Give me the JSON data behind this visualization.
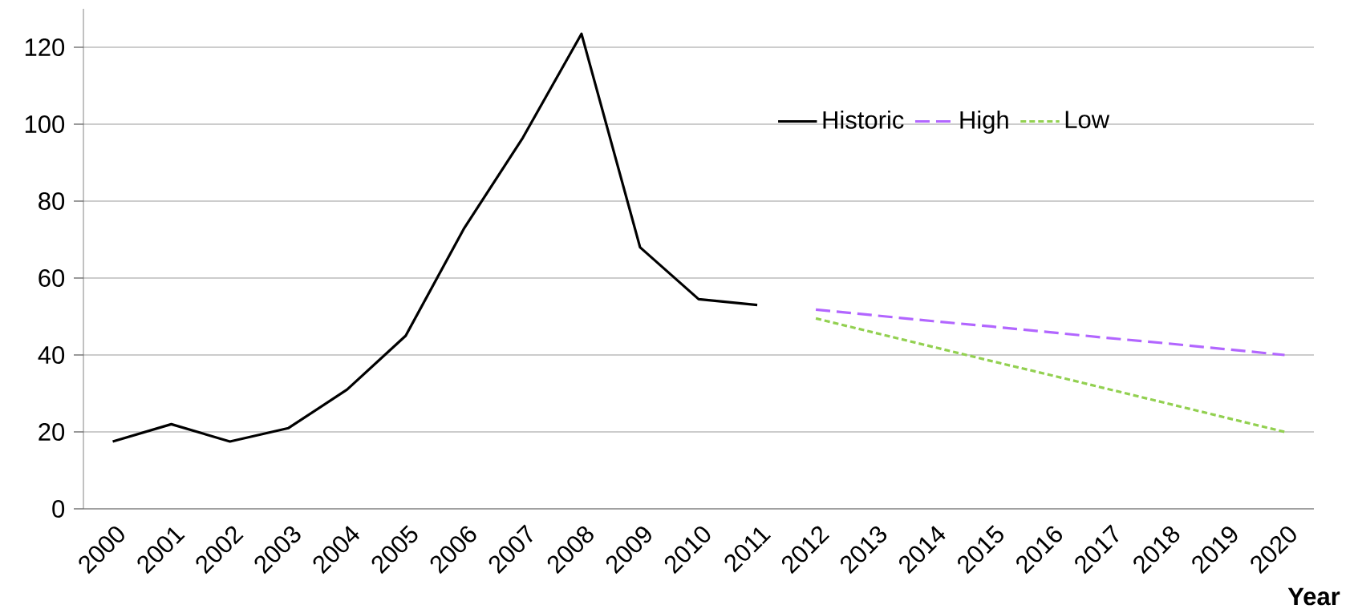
{
  "chart_data": {
    "type": "line",
    "xlabel": "Year",
    "categories": [
      "2000",
      "2001",
      "2002",
      "2003",
      "2004",
      "2005",
      "2006",
      "2007",
      "2008",
      "2009",
      "2010",
      "2011",
      "2012",
      "2013",
      "2014",
      "2015",
      "2016",
      "2017",
      "2018",
      "2019",
      "2020"
    ],
    "series": [
      {
        "name": "Historic",
        "color": "#000000",
        "line_style": "solid",
        "values": [
          17.5,
          22,
          17.5,
          21,
          31,
          45,
          73,
          96.5,
          123.5,
          68,
          54.5,
          53,
          null,
          null,
          null,
          null,
          null,
          null,
          null,
          null,
          null
        ]
      },
      {
        "name": "High",
        "color": "#b266ff",
        "line_style": "dashed",
        "values": [
          null,
          null,
          null,
          null,
          null,
          null,
          null,
          null,
          null,
          null,
          null,
          null,
          51.8,
          50.3,
          48.8,
          47.4,
          45.9,
          44.4,
          43,
          41.5,
          40
        ]
      },
      {
        "name": "Low",
        "color": "#92d050",
        "line_style": "dotted",
        "values": [
          null,
          null,
          null,
          null,
          null,
          null,
          null,
          null,
          null,
          null,
          null,
          null,
          49.5,
          45.8,
          42.1,
          38.4,
          34.8,
          31.1,
          27.4,
          23.7,
          20
        ]
      }
    ],
    "ylim": [
      0,
      130
    ],
    "yticks": [
      0,
      20,
      40,
      60,
      80,
      100,
      120
    ],
    "grid": "y",
    "legend": "top"
  }
}
